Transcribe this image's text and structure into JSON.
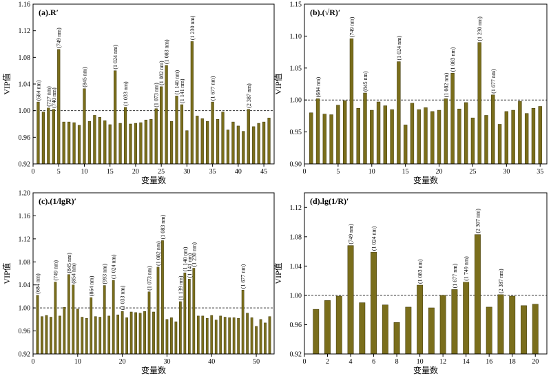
{
  "chart_data": [
    {
      "type": "bar",
      "title": "(a).R′",
      "xlabel": "变量数",
      "ylabel": "VIP值",
      "ylim": [
        0.92,
        1.16
      ],
      "yticks": [
        "0.92",
        "0.96",
        "1.00",
        "1.04",
        "1.08",
        "1.12",
        "1.16"
      ],
      "xlim": [
        0,
        47
      ],
      "xticks": [
        "0",
        "5",
        "10",
        "15",
        "20",
        "25",
        "30",
        "35",
        "40",
        "45"
      ],
      "reference_line": 1.0,
      "x": [
        1,
        2,
        3,
        4,
        5,
        6,
        7,
        8,
        9,
        10,
        11,
        12,
        13,
        14,
        15,
        16,
        17,
        18,
        19,
        20,
        21,
        22,
        23,
        24,
        25,
        26,
        27,
        28,
        29,
        30,
        31,
        32,
        33,
        34,
        35,
        36,
        37,
        38,
        39,
        40,
        41,
        42,
        43,
        44,
        45,
        46
      ],
      "values": [
        1.013,
        0.998,
        1.004,
        1.002,
        1.092,
        0.983,
        0.983,
        0.982,
        0.978,
        1.033,
        0.984,
        0.993,
        0.99,
        0.985,
        0.979,
        1.06,
        0.981,
        1.005,
        0.98,
        0.981,
        0.982,
        0.986,
        0.987,
        1.003,
        1.036,
        1.068,
        0.984,
        1.022,
        1.009,
        0.97,
        1.104,
        0.992,
        0.988,
        0.984,
        1.013,
        0.987,
        0.998,
        0.971,
        0.983,
        0.977,
        0.969,
        1.002,
        0.976,
        0.981,
        0.983,
        0.989
      ],
      "annotations": [
        {
          "x": 1,
          "text": "(684 nm)"
        },
        {
          "x": 3,
          "text": "(727 nm)"
        },
        {
          "x": 4,
          "text": "(740 nm)"
        },
        {
          "x": 5,
          "text": "(749 nm)"
        },
        {
          "x": 10,
          "text": "(845 nm)"
        },
        {
          "x": 16,
          "text": "(1 024 nm)"
        },
        {
          "x": 18,
          "text": "(1 033 nm)"
        },
        {
          "x": 24,
          "text": "(1 073 nm)"
        },
        {
          "x": 25,
          "text": "(1 082 nm)"
        },
        {
          "x": 26,
          "text": "(1 083 nm)"
        },
        {
          "x": 28,
          "text": "(1 140 nm)"
        },
        {
          "x": 29,
          "text": "(1 141 nm)"
        },
        {
          "x": 31,
          "text": "(1 230 nm)"
        },
        {
          "x": 35,
          "text": "(1 677 nm)"
        },
        {
          "x": 42,
          "text": "(2 387 nm)"
        }
      ]
    },
    {
      "type": "bar",
      "title": "(b).(√R)′",
      "xlabel": "变量数",
      "ylabel": "VIP值",
      "ylim": [
        0.9,
        1.15
      ],
      "yticks": [
        "0.90",
        "0.95",
        "1.00",
        "1.05",
        "1.10",
        "1.15"
      ],
      "xlim": [
        0,
        36
      ],
      "xticks": [
        "0",
        "5",
        "10",
        "15",
        "20",
        "25",
        "30",
        "35"
      ],
      "reference_line": 1.0,
      "x": [
        1,
        2,
        3,
        4,
        5,
        6,
        7,
        8,
        9,
        10,
        11,
        12,
        13,
        14,
        15,
        16,
        17,
        18,
        19,
        20,
        21,
        22,
        23,
        24,
        25,
        26,
        27,
        28,
        29,
        30,
        31,
        32,
        33,
        34,
        35
      ],
      "values": [
        0.98,
        1.002,
        0.978,
        0.977,
        0.992,
        0.999,
        1.096,
        0.987,
        1.011,
        0.984,
        0.997,
        0.991,
        0.985,
        1.06,
        0.961,
        0.995,
        0.985,
        0.988,
        0.982,
        0.984,
        1.002,
        1.042,
        0.986,
        0.996,
        0.972,
        1.09,
        0.976,
        1.008,
        0.962,
        0.982,
        0.984,
        0.998,
        0.979,
        0.987,
        0.99
      ],
      "annotations": [
        {
          "x": 2,
          "text": "(684 nm)"
        },
        {
          "x": 7,
          "text": "(749 nm)"
        },
        {
          "x": 9,
          "text": "(845 nm)"
        },
        {
          "x": 14,
          "text": "(1 024 nm)"
        },
        {
          "x": 21,
          "text": "(1 082 nm)"
        },
        {
          "x": 22,
          "text": "(1 083 nm)"
        },
        {
          "x": 26,
          "text": "(1 230 nm)"
        },
        {
          "x": 28,
          "text": "(1 677 nm)"
        }
      ]
    },
    {
      "type": "bar",
      "title": "(c).(1/lgR)′",
      "xlabel": "变量数",
      "ylabel": "VIP值",
      "ylim": [
        0.92,
        1.2
      ],
      "yticks": [
        "0.92",
        "0.96",
        "1.00",
        "1.04",
        "1.08",
        "1.12",
        "1.16",
        "1.20"
      ],
      "xlim": [
        0,
        54
      ],
      "xticks": [
        "0",
        "10",
        "20",
        "30",
        "40",
        "50"
      ],
      "reference_line": 1.0,
      "x": [
        1,
        2,
        3,
        4,
        5,
        6,
        7,
        8,
        9,
        10,
        11,
        12,
        13,
        14,
        15,
        16,
        17,
        18,
        19,
        20,
        21,
        22,
        23,
        24,
        25,
        26,
        27,
        28,
        29,
        30,
        31,
        32,
        33,
        34,
        35,
        36,
        37,
        38,
        39,
        40,
        41,
        42,
        43,
        44,
        45,
        46,
        47,
        48,
        49,
        50,
        51,
        52,
        53
      ],
      "values": [
        1.022,
        0.985,
        0.987,
        0.984,
        1.045,
        0.986,
        1.001,
        1.058,
        1.04,
        0.998,
        0.984,
        0.982,
        1.018,
        0.985,
        0.984,
        1.039,
        0.986,
        1.048,
        0.988,
        0.994,
        0.983,
        0.993,
        0.992,
        0.991,
        0.994,
        1.028,
        0.993,
        1.071,
        1.117,
        0.98,
        0.983,
        0.976,
        1.011,
        1.061,
        1.05,
        1.069,
        0.986,
        0.986,
        0.982,
        0.987,
        0.979,
        0.986,
        0.984,
        0.983,
        0.983,
        0.982,
        1.031,
        0.991,
        0.983,
        0.968,
        0.98,
        0.974,
        0.985
      ],
      "annotations": [
        {
          "x": 1,
          "text": "(684 nm)"
        },
        {
          "x": 5,
          "text": "(749 nm)"
        },
        {
          "x": 8,
          "text": "(845 nm)"
        },
        {
          "x": 9,
          "text": "(854 nm)"
        },
        {
          "x": 13,
          "text": "(864 nm)"
        },
        {
          "x": 16,
          "text": "(993 nm)"
        },
        {
          "x": 18,
          "text": "(1 024 nm)"
        },
        {
          "x": 20,
          "text": "(1 033 nm)"
        },
        {
          "x": 26,
          "text": "(1 073 nm)"
        },
        {
          "x": 28,
          "text": "(1 082 nm)"
        },
        {
          "x": 29,
          "text": "(1 083 nm)"
        },
        {
          "x": 33,
          "text": "(1 139 nm)"
        },
        {
          "x": 34,
          "text": "(1 140 nm)"
        },
        {
          "x": 35,
          "text": "(1 141 nm)"
        },
        {
          "x": 36,
          "text": "(1 230 nm)"
        },
        {
          "x": 47,
          "text": "(1 677 nm)"
        }
      ]
    },
    {
      "type": "bar",
      "title": "(d).lg(1/R)′",
      "xlabel": "变量数",
      "ylabel": "VIP值",
      "ylim": [
        0.92,
        1.14
      ],
      "yticks": [
        "0.92",
        "0.96",
        "1.00",
        "1.04",
        "1.08",
        "1.12"
      ],
      "xlim": [
        0,
        21
      ],
      "xticks": [
        "0",
        "2",
        "4",
        "6",
        "8",
        "10",
        "12",
        "14",
        "16",
        "18",
        "20"
      ],
      "reference_line": 1.0,
      "x": [
        1,
        2,
        3,
        4,
        5,
        6,
        7,
        8,
        9,
        10,
        11,
        12,
        13,
        14,
        15,
        16,
        17,
        18,
        19,
        20
      ],
      "values": [
        0.981,
        0.993,
        0.999,
        1.068,
        0.99,
        1.059,
        0.987,
        0.963,
        0.984,
        1.014,
        0.983,
        1.0,
        1.008,
        1.018,
        1.083,
        0.984,
        1.001,
        0.999,
        0.986,
        0.988
      ],
      "annotations": [
        {
          "x": 4,
          "text": "(749 nm)"
        },
        {
          "x": 6,
          "text": "(1 024 nm)"
        },
        {
          "x": 10,
          "text": "(1 083 nm)"
        },
        {
          "x": 13,
          "text": "(1 677 nm)"
        },
        {
          "x": 14,
          "text": "(1 749 nm)"
        },
        {
          "x": 15,
          "text": "(2 307 nm)"
        },
        {
          "x": 17,
          "text": "(2 387 nm)"
        }
      ]
    }
  ]
}
